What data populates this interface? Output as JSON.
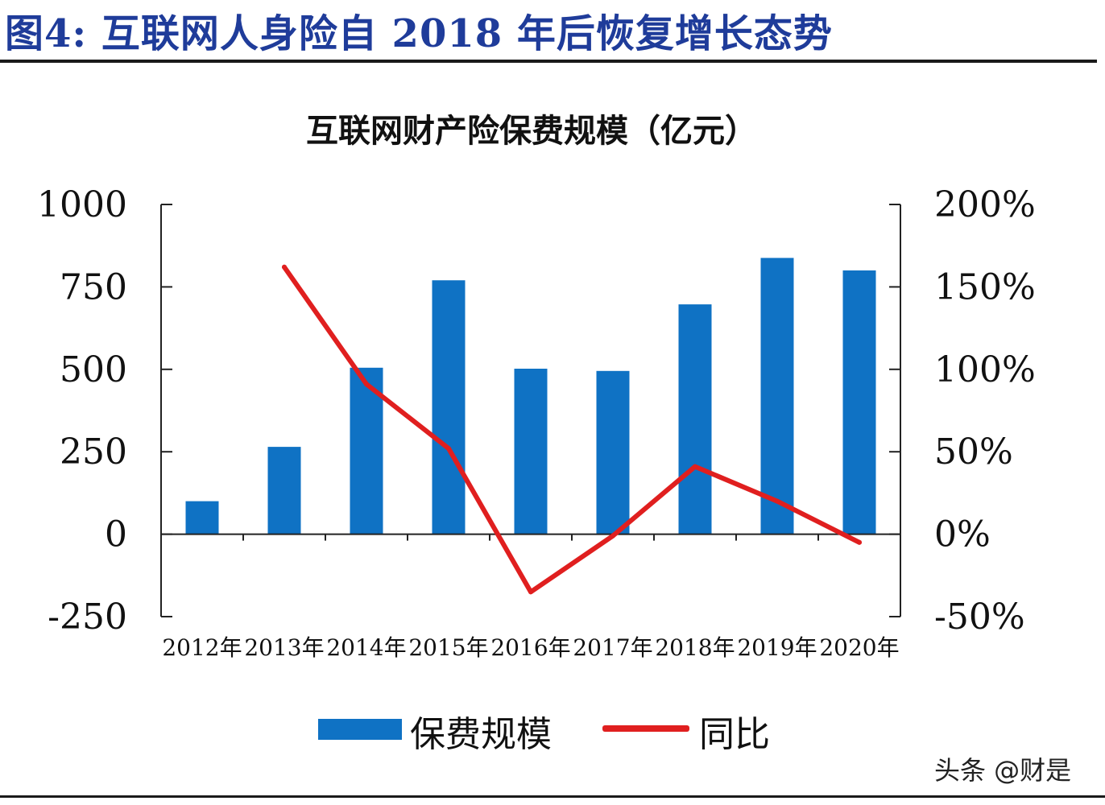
{
  "figure": {
    "title": "图4:  互联网人身险自 2018 年后恢复增长态势"
  },
  "colors": {
    "title_blue": "#1f3c9a",
    "bar": "#0f72c4",
    "line": "#e01f1f"
  },
  "chart_data": {
    "type": "bar",
    "title": "互联网财产险保费规模（亿元）",
    "categories": [
      "2012年",
      "2013年",
      "2014年",
      "2015年",
      "2016年",
      "2017年",
      "2018年",
      "2019年",
      "2020年"
    ],
    "series": [
      {
        "name": "保费规模",
        "type": "bar",
        "axis": "left",
        "values": [
          100,
          265,
          505,
          770,
          502,
          495,
          697,
          838,
          800
        ]
      },
      {
        "name": "同比",
        "type": "line",
        "axis": "right",
        "values": [
          null,
          162,
          91,
          52,
          -35,
          -1,
          41,
          20,
          -5
        ]
      }
    ],
    "left_axis": {
      "ylim": [
        -250,
        1000
      ],
      "ticks": [
        "1000",
        "750",
        "500",
        "250",
        "0",
        "-250"
      ],
      "tick_values": [
        1000,
        750,
        500,
        250,
        0,
        -250
      ]
    },
    "right_axis": {
      "ylim": [
        -50,
        200
      ],
      "ticks": [
        "200%",
        "150%",
        "100%",
        "50%",
        "0%",
        "-50%"
      ],
      "tick_values": [
        200,
        150,
        100,
        50,
        0,
        -50
      ]
    },
    "grid": false,
    "legend_position": "bottom"
  },
  "watermark": "头条 @财是"
}
